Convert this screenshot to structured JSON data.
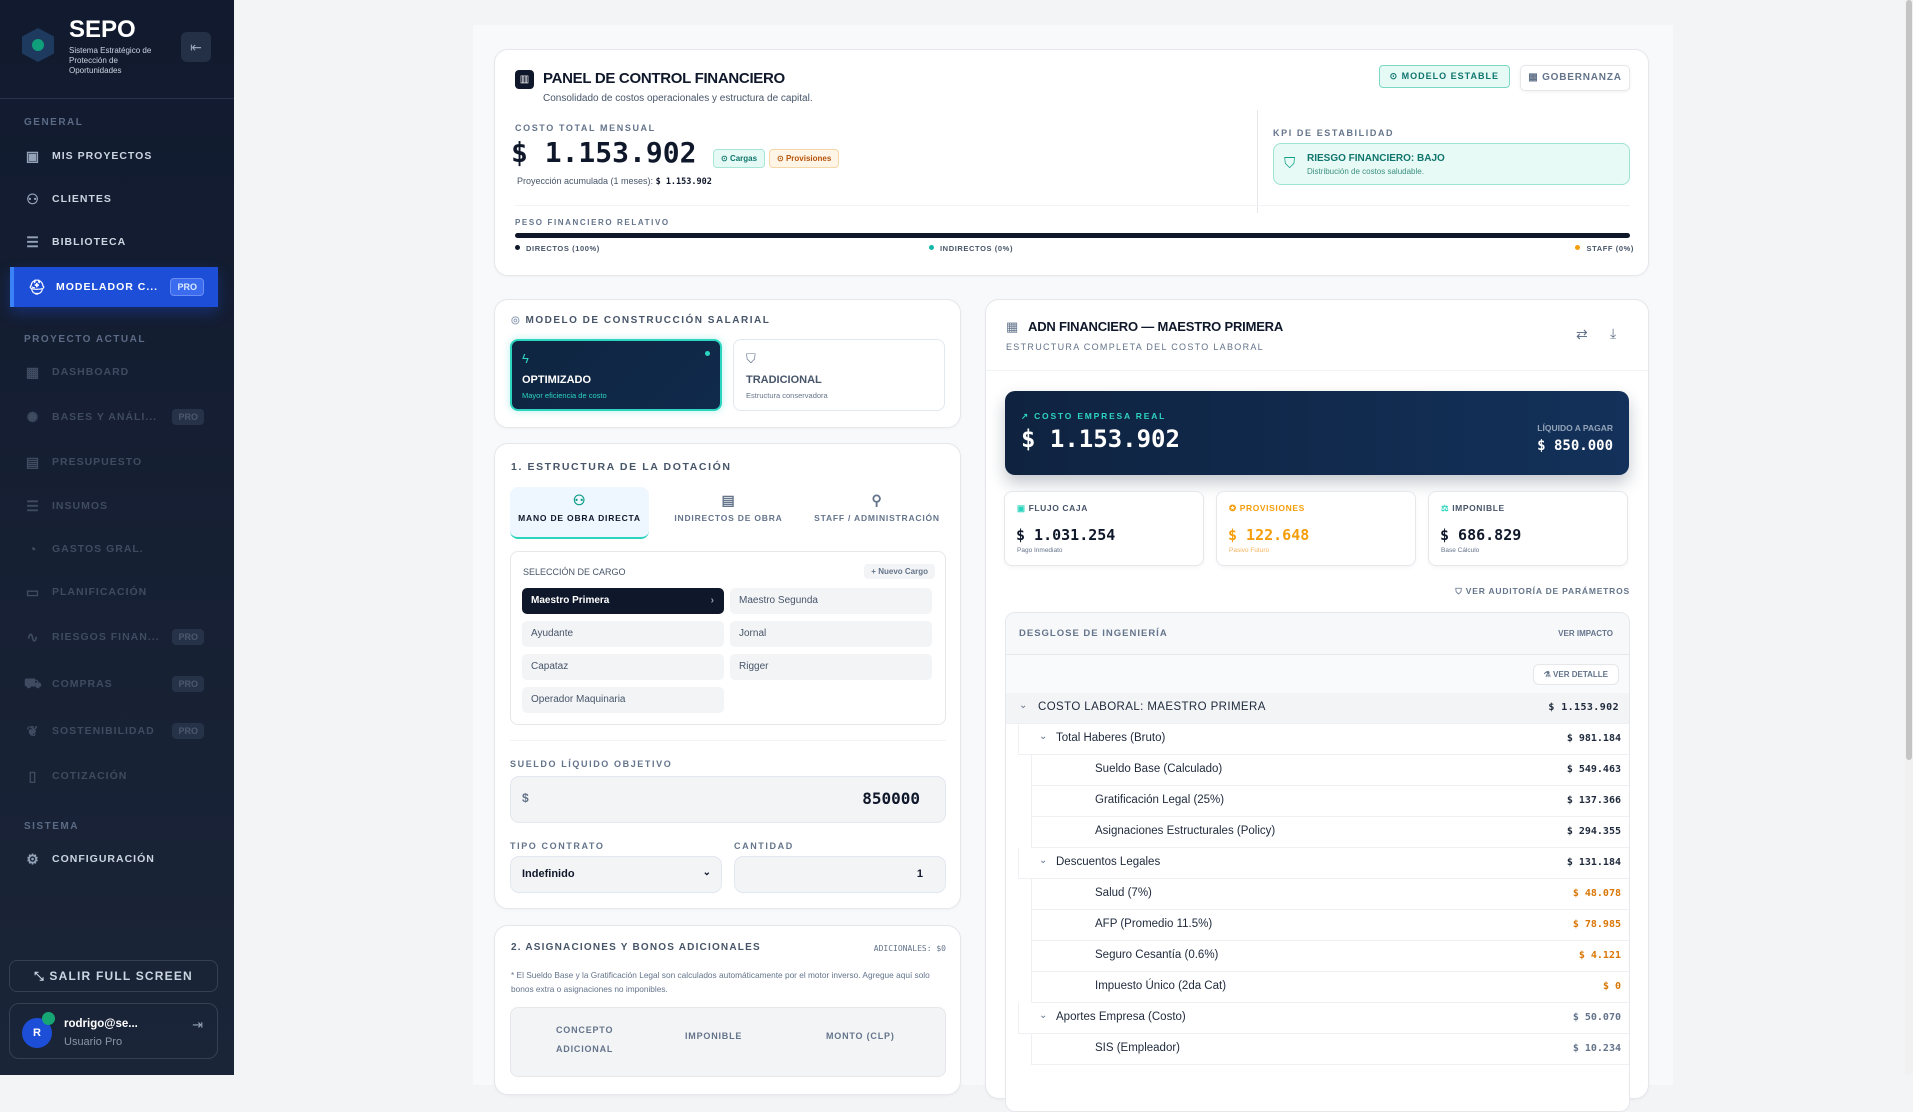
{
  "brand": {
    "name": "SEPO",
    "subtitle": "Sistema Estratégico de Protección de Oportunidades"
  },
  "sidebar": {
    "sections": {
      "general": "GENERAL",
      "proyecto": "PROYECTO ACTUAL",
      "sistema": "SISTEMA"
    },
    "items": [
      {
        "label": "MIS PROYECTOS",
        "icon": "folder-icon"
      },
      {
        "label": "CLIENTES",
        "icon": "users-icon"
      },
      {
        "label": "BIBLIOTECA",
        "icon": "database-icon"
      },
      {
        "label": "MODELADOR C...",
        "icon": "hard-hat-icon",
        "badge": "PRO",
        "active": true
      },
      {
        "label": "DASHBOARD",
        "icon": "grid-icon"
      },
      {
        "label": "BASES Y ANÁLI...",
        "icon": "brain-icon",
        "badge": "PRO"
      },
      {
        "label": "PRESUPUESTO",
        "icon": "calculator-icon"
      },
      {
        "label": "INSUMOS",
        "icon": "database-icon"
      },
      {
        "label": "GASTOS GRAL.",
        "icon": "pie-chart-icon"
      },
      {
        "label": "PLANIFICACIÓN",
        "icon": "calendar-icon"
      },
      {
        "label": "RIESGOS FINAN...",
        "icon": "activity-icon",
        "badge": "PRO"
      },
      {
        "label": "COMPRAS",
        "icon": "cart-icon",
        "badge": "PRO"
      },
      {
        "label": "SOSTENIBILIDAD",
        "icon": "leaf-icon",
        "badge": "PRO"
      },
      {
        "label": "COTIZACIÓN",
        "icon": "file-icon"
      },
      {
        "label": "CONFIGURACIÓN",
        "icon": "gear-icon"
      }
    ],
    "fullscreen_label": "SALIR FULL SCREEN",
    "user": {
      "initial": "R",
      "name": "rodrigo@se...",
      "role": "Usuario Pro"
    }
  },
  "panel": {
    "title": "PANEL DE CONTROL FINANCIERO",
    "subtitle": "Consolidado de costos operacionales y estructura de capital.",
    "status_badge": "MODELO ESTABLE",
    "governance_label": "GOBERNANZA",
    "total_label": "COSTO TOTAL MENSUAL",
    "total_value": "$ 1.153.902",
    "tag_cargas": "Cargas",
    "tag_provisiones": "Provisiones",
    "projection_label": "Proyección acumulada (1 meses):",
    "projection_value": "$ 1.153.902",
    "kpi_label": "KPI DE ESTABILIDAD",
    "kpi_title": "RIESGO FINANCIERO: BAJO",
    "kpi_desc": "Distribución de costos saludable.",
    "weight_label": "PESO FINANCIERO RELATIVO",
    "weights": [
      {
        "label": "DIRECTOS (100%)",
        "percent": 100,
        "color": "#0f172a"
      },
      {
        "label": "INDIRECTOS (0%)",
        "percent": 0,
        "color": "#14b8a6"
      },
      {
        "label": "STAFF (0%)",
        "percent": 0,
        "color": "#f59e0b"
      }
    ]
  },
  "modelo": {
    "title": "MODELO DE CONSTRUCCIÓN SALARIAL",
    "options": [
      {
        "title": "OPTIMIZADO",
        "desc": "Mayor eficiencia de costo",
        "selected": true
      },
      {
        "title": "TRADICIONAL",
        "desc": "Estructura conservadora",
        "selected": false
      }
    ]
  },
  "dotacion": {
    "title": "1. ESTRUCTURA DE LA DOTACIÓN",
    "tabs": [
      "MANO DE OBRA DIRECTA",
      "INDIRECTOS DE OBRA",
      "STAFF / ADMINISTRACIÓN"
    ],
    "cargo_label": "SELECCIÓN DE CARGO",
    "new_cargo": "Nuevo Cargo",
    "cargos": [
      "Maestro Primera",
      "Maestro Segunda",
      "Ayudante",
      "Jornal",
      "Capataz",
      "Rigger",
      "Operador Maquinaria"
    ],
    "sueldo_label": "SUELDO LÍQUIDO OBJETIVO",
    "currency": "$",
    "sueldo_value": "850000",
    "contrato_label": "TIPO CONTRATO",
    "contrato_value": "Indefinido",
    "cantidad_label": "CANTIDAD",
    "cantidad_value": "1"
  },
  "asignaciones": {
    "title": "2. ASIGNACIONES Y BONOS ADICIONALES",
    "total": "ADICIONALES: $0",
    "note": "* El Sueldo Base y la Gratificación Legal son calculados automáticamente por el motor inverso. Agregue aquí solo bonos extra o asignaciones no imponibles.",
    "columns": [
      "CONCEPTO ADICIONAL",
      "IMPONIBLE",
      "MONTO (CLP)"
    ]
  },
  "adn": {
    "title": "ADN FINANCIERO — MAESTRO PRIMERA",
    "subtitle": "ESTRUCTURA COMPLETA DEL COSTO LABORAL",
    "hero_label": "COSTO EMPRESA REAL",
    "hero_value": "$ 1.153.902",
    "liquido_label": "LÍQUIDO A PAGAR",
    "liquido_value": "$ 850.000",
    "stats": [
      {
        "label": "FLUJO CAJA",
        "value": "$ 1.031.254",
        "sub": "Pago Inmediato",
        "color": "#0f172a"
      },
      {
        "label": "PROVISIONES",
        "value": "$ 122.648",
        "sub": "Pasivo Futuro",
        "color": "#f59e0b"
      },
      {
        "label": "IMPONIBLE",
        "value": "$ 686.829",
        "sub": "Base Cálculo",
        "color": "#0f172a"
      }
    ],
    "audit_link": "VER AUDITORÍA DE PARÁMETROS",
    "breakdown_title": "DESGLOSE DE INGENIERÍA",
    "impact_link": "VER IMPACTO",
    "detail_button": "VER DETALLE",
    "rows": [
      {
        "label": "COSTO LABORAL: MAESTRO PRIMERA",
        "value": "$ 1.153.902",
        "level": 0
      },
      {
        "label": "Total Haberes (Bruto)",
        "value": "$ 981.184",
        "level": 1
      },
      {
        "label": "Sueldo Base (Calculado)",
        "value": "$ 549.463",
        "level": 2
      },
      {
        "label": "Gratificación Legal (25%)",
        "value": "$ 137.366",
        "level": 2
      },
      {
        "label": "Asignaciones Estructurales (Policy)",
        "value": "$ 294.355",
        "level": 2
      },
      {
        "label": "Descuentos Legales",
        "value": "$ 131.184",
        "level": 1
      },
      {
        "label": "Salud (7%)",
        "value": "$ 48.078",
        "level": 2,
        "tone": "warn"
      },
      {
        "label": "AFP (Promedio 11.5%)",
        "value": "$ 78.985",
        "level": 2,
        "tone": "warn"
      },
      {
        "label": "Seguro Cesantía (0.6%)",
        "value": "$ 4.121",
        "level": 2,
        "tone": "warn"
      },
      {
        "label": "Impuesto Único (2da Cat)",
        "value": "$ 0",
        "level": 2,
        "tone": "warn"
      },
      {
        "label": "Aportes Empresa (Costo)",
        "value": "$ 50.070",
        "level": 1,
        "tone": "muted"
      },
      {
        "label": "SIS (Empleador)",
        "value": "$ 10.234",
        "level": 2,
        "tone": "muted"
      }
    ]
  }
}
